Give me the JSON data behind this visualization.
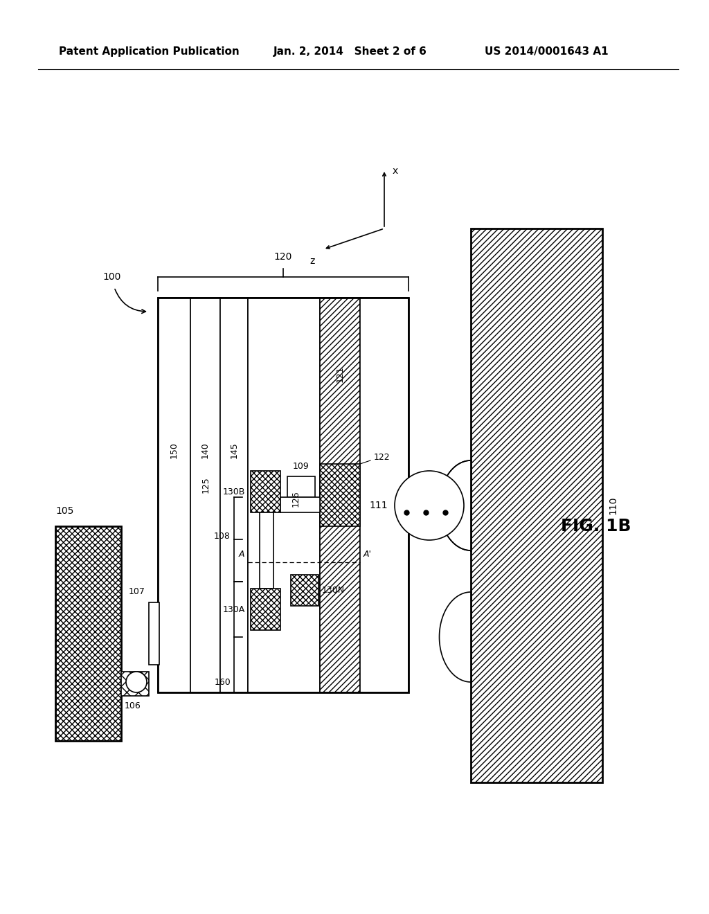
{
  "title": "FIG. 1B",
  "header_left": "Patent Application Publication",
  "header_center": "Jan. 2, 2014   Sheet 2 of 6",
  "header_right": "US 2014/0001643 A1",
  "bg_color": "#ffffff",
  "label_100": "100",
  "label_105": "105",
  "label_106": "106",
  "label_107": "107",
  "label_108": "108",
  "label_109": "109",
  "label_110": "110",
  "label_111": "111",
  "label_120": "120",
  "label_121": "121",
  "label_122": "122",
  "label_125": "125",
  "label_126": "126",
  "label_130A": "130A",
  "label_130B": "130B",
  "label_130N": "130N",
  "label_140": "140",
  "label_145": "145",
  "label_150": "150",
  "label_160": "160",
  "label_A": "A",
  "label_Aprime": "A'",
  "axis_x": "x",
  "axis_z": "z"
}
